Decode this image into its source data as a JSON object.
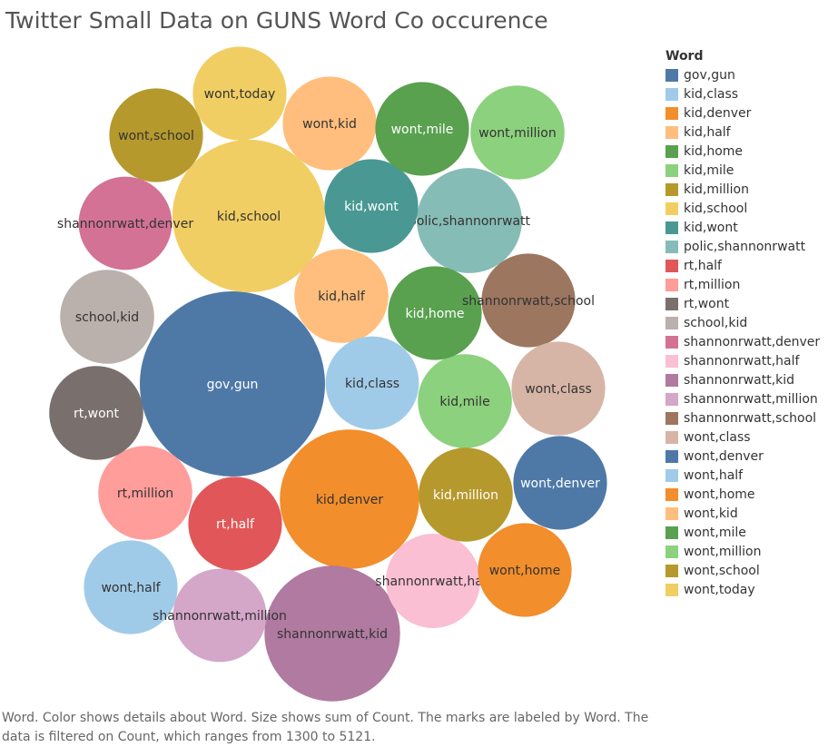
{
  "title": "Twitter Small Data on GUNS Word Co occurence",
  "caption": "Word.  Color shows details about Word.  Size shows sum of Count.  The marks are labeled by Word. The data is filtered on Count, which ranges from 1300 to 5121.",
  "legend_title": "Word",
  "chart_data": {
    "type": "packed-bubble",
    "size_field": "Count",
    "color_field": "Word",
    "count_range": [
      1300,
      5121
    ],
    "bubbles": [
      {
        "word": "gov,gun",
        "count": 5121,
        "color": "#4e79a7",
        "text_color": "#ffffff"
      },
      {
        "word": "kid,class",
        "count": 1300,
        "color": "#a0cbe8",
        "text_color": "#333333"
      },
      {
        "word": "kid,denver",
        "count": 2900,
        "color": "#f28e2b",
        "text_color": "#333333"
      },
      {
        "word": "kid,half",
        "count": 1320,
        "color": "#ffbe7d",
        "text_color": "#333333"
      },
      {
        "word": "kid,home",
        "count": 1310,
        "color": "#59a14f",
        "text_color": "#ffffff"
      },
      {
        "word": "kid,mile",
        "count": 1320,
        "color": "#8cd17d",
        "text_color": "#333333"
      },
      {
        "word": "kid,million",
        "count": 1320,
        "color": "#b6992d",
        "text_color": "#ffffff"
      },
      {
        "word": "kid,school",
        "count": 3480,
        "color": "#f1ce63",
        "text_color": "#333333"
      },
      {
        "word": "kid,wont",
        "count": 1310,
        "color": "#499894",
        "text_color": "#ffffff"
      },
      {
        "word": "polic,shannonrwatt",
        "count": 1650,
        "color": "#86bcb6",
        "text_color": "#333333"
      },
      {
        "word": "rt,half",
        "count": 1310,
        "color": "#e15759",
        "text_color": "#ffffff"
      },
      {
        "word": "rt,million",
        "count": 1320,
        "color": "#ff9d9a",
        "text_color": "#333333"
      },
      {
        "word": "rt,wont",
        "count": 1320,
        "color": "#79706e",
        "text_color": "#ffffff"
      },
      {
        "word": "school,kid",
        "count": 1320,
        "color": "#bab0ac",
        "text_color": "#333333"
      },
      {
        "word": "shannonrwatt,denver",
        "count": 1300,
        "color": "#d37295",
        "text_color": "#333333"
      },
      {
        "word": "shannonrwatt,half",
        "count": 1330,
        "color": "#fabfd2",
        "text_color": "#333333"
      },
      {
        "word": "shannonrwatt,kid",
        "count": 2750,
        "color": "#b07aa1",
        "text_color": "#333333"
      },
      {
        "word": "shannonrwatt,million",
        "count": 1300,
        "color": "#d4a6c8",
        "text_color": "#333333"
      },
      {
        "word": "shannonrwatt,school",
        "count": 1310,
        "color": "#9d7660",
        "text_color": "#333333"
      },
      {
        "word": "wont,class",
        "count": 1310,
        "color": "#d7b5a6",
        "text_color": "#333333"
      },
      {
        "word": "wont,denver",
        "count": 1310,
        "color": "#4e79a7",
        "text_color": "#ffffff"
      },
      {
        "word": "wont,half",
        "count": 1310,
        "color": "#a0cbe8",
        "text_color": "#333333"
      },
      {
        "word": "wont,home",
        "count": 1310,
        "color": "#f28e2b",
        "text_color": "#333333"
      },
      {
        "word": "wont,kid",
        "count": 1310,
        "color": "#ffbe7d",
        "text_color": "#333333"
      },
      {
        "word": "wont,mile",
        "count": 1310,
        "color": "#59a14f",
        "text_color": "#ffffff"
      },
      {
        "word": "wont,million",
        "count": 1320,
        "color": "#8cd17d",
        "text_color": "#333333"
      },
      {
        "word": "wont,school",
        "count": 1310,
        "color": "#b6992d",
        "text_color": "#333333"
      },
      {
        "word": "wont,today",
        "count": 1310,
        "color": "#f1ce63",
        "text_color": "#333333"
      }
    ]
  }
}
